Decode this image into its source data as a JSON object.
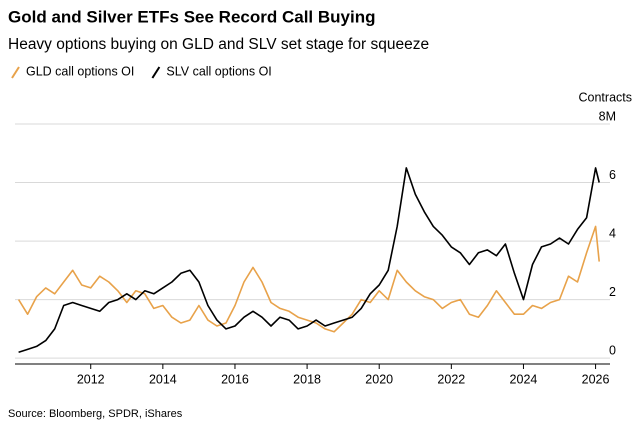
{
  "chart_data": {
    "type": "line",
    "title": "Gold and Silver ETFs See Record Call Buying",
    "subtitle": "Heavy options buying on GLD and SLV set stage for squeeze",
    "y_label": "Contracts",
    "source": "Source: Bloomberg, SPDR, iShares",
    "x": [
      2010,
      2010.25,
      2010.5,
      2010.75,
      2011,
      2011.25,
      2011.5,
      2011.75,
      2012,
      2012.25,
      2012.5,
      2012.75,
      2013,
      2013.25,
      2013.5,
      2013.75,
      2014,
      2014.25,
      2014.5,
      2014.75,
      2015,
      2015.25,
      2015.5,
      2015.75,
      2016,
      2016.25,
      2016.5,
      2016.75,
      2017,
      2017.25,
      2017.5,
      2017.75,
      2018,
      2018.25,
      2018.5,
      2018.75,
      2019,
      2019.25,
      2019.5,
      2019.75,
      2020,
      2020.25,
      2020.5,
      2020.75,
      2021,
      2021.25,
      2021.5,
      2021.75,
      2022,
      2022.25,
      2022.5,
      2022.75,
      2023,
      2023.25,
      2023.5,
      2023.75,
      2024,
      2024.25,
      2024.5,
      2024.75,
      2025,
      2025.25,
      2025.5,
      2025.75,
      2026,
      2026.1
    ],
    "series": [
      {
        "name": "GLD call options OI",
        "color": "#e8a24a",
        "values": [
          2.0,
          1.5,
          2.1,
          2.4,
          2.2,
          2.6,
          3.0,
          2.5,
          2.4,
          2.8,
          2.6,
          2.3,
          1.9,
          2.3,
          2.2,
          1.7,
          1.8,
          1.4,
          1.2,
          1.3,
          1.8,
          1.3,
          1.1,
          1.2,
          1.8,
          2.6,
          3.1,
          2.6,
          1.9,
          1.7,
          1.6,
          1.4,
          1.3,
          1.2,
          1.0,
          0.9,
          1.2,
          1.5,
          2.0,
          1.9,
          2.3,
          2.0,
          3.0,
          2.6,
          2.3,
          2.1,
          2.0,
          1.7,
          1.9,
          2.0,
          1.5,
          1.4,
          1.8,
          2.3,
          1.9,
          1.5,
          1.5,
          1.8,
          1.7,
          1.9,
          2.0,
          2.8,
          2.6,
          3.6,
          4.5,
          3.3
        ]
      },
      {
        "name": "SLV call options OI",
        "color": "#000000",
        "values": [
          0.2,
          0.3,
          0.4,
          0.6,
          1.0,
          1.8,
          1.9,
          1.8,
          1.7,
          1.6,
          1.9,
          2.0,
          2.2,
          2.0,
          2.3,
          2.2,
          2.4,
          2.6,
          2.9,
          3.0,
          2.6,
          1.8,
          1.3,
          1.0,
          1.1,
          1.4,
          1.6,
          1.4,
          1.1,
          1.4,
          1.3,
          1.0,
          1.1,
          1.3,
          1.1,
          1.2,
          1.3,
          1.4,
          1.7,
          2.2,
          2.5,
          3.0,
          4.5,
          6.5,
          5.6,
          5.0,
          4.5,
          4.2,
          3.8,
          3.6,
          3.2,
          3.6,
          3.7,
          3.5,
          3.9,
          2.9,
          2.0,
          3.2,
          3.8,
          3.9,
          4.1,
          3.9,
          4.4,
          4.8,
          6.5,
          6.0
        ]
      }
    ],
    "xlim": [
      2009.9,
      2026.4
    ],
    "xticks": [
      2012,
      2014,
      2016,
      2018,
      2020,
      2022,
      2024,
      2026
    ],
    "ylim": [
      -0.2,
      8
    ],
    "yticks": [
      0,
      2,
      4,
      6,
      {
        "value": 8,
        "label": "8M"
      }
    ],
    "grid": true
  }
}
